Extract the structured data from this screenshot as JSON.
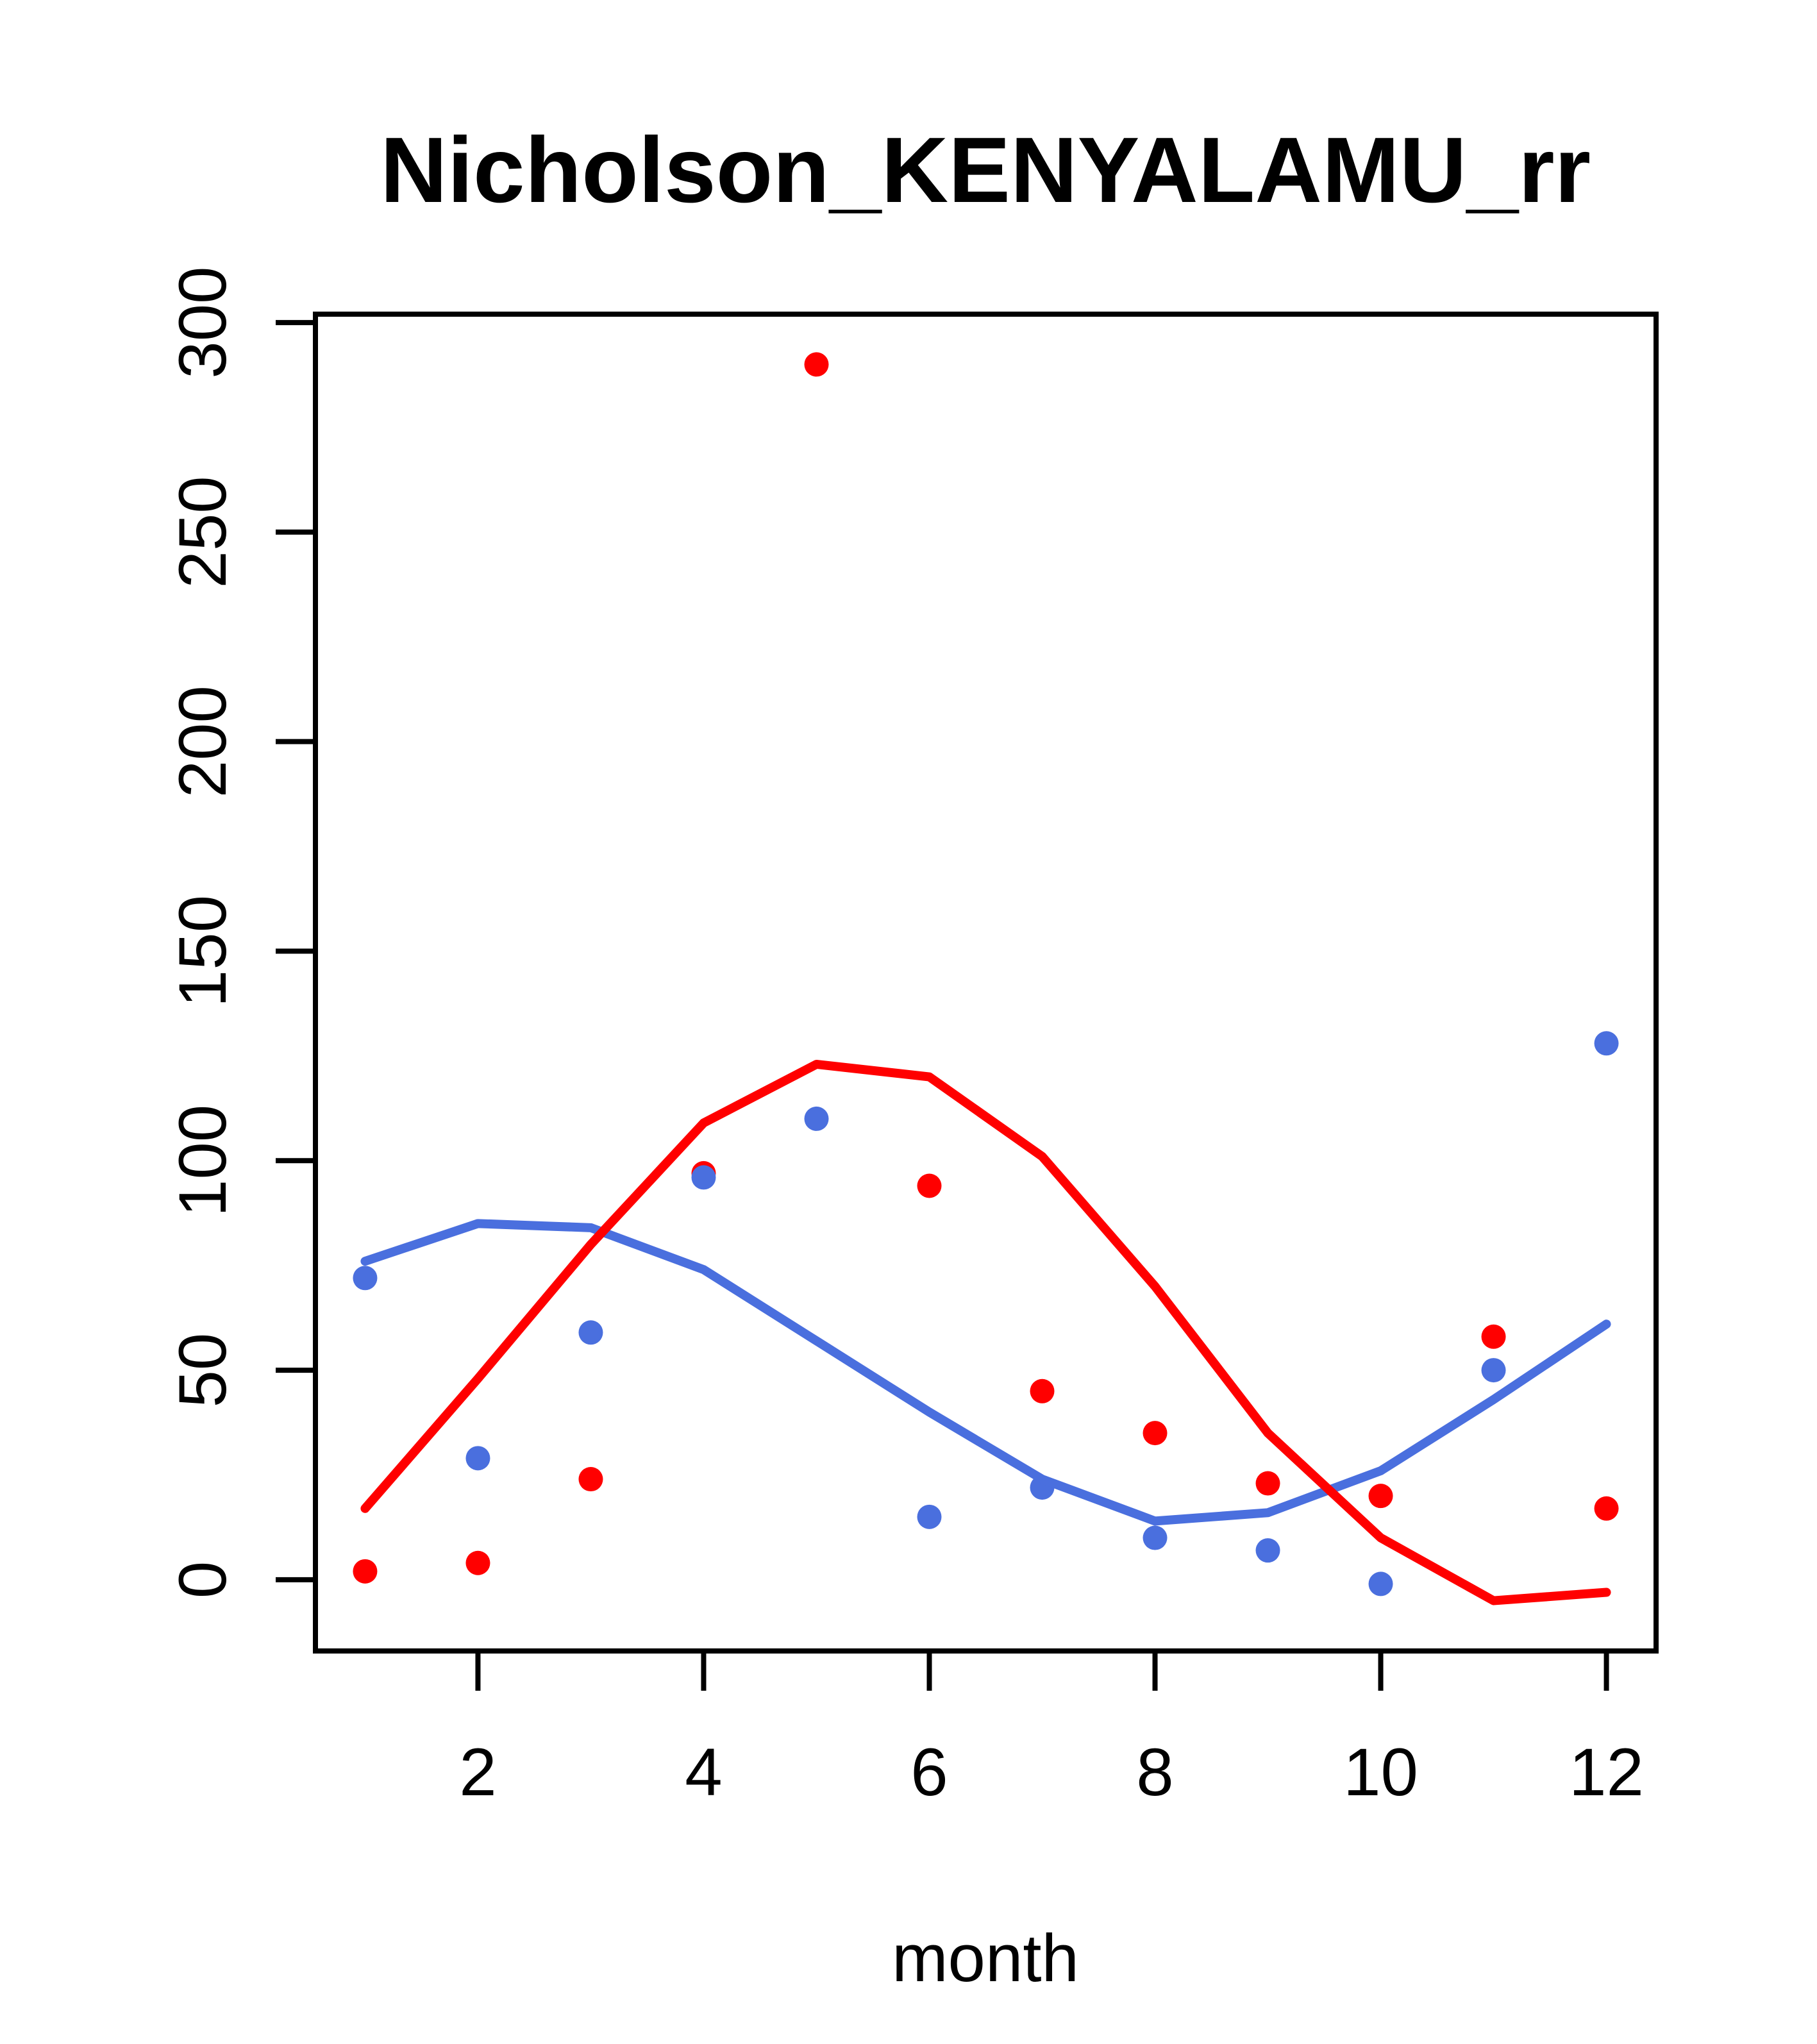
{
  "figure": {
    "background": "#ffffff",
    "frame_color": "#000000"
  },
  "chart_data": {
    "type": "scatter",
    "title": "Nicholson_KENYALAMU_rr",
    "xlabel": "month",
    "ylabel": "",
    "grid": false,
    "legend": null,
    "xlim": [
      0.56,
      12.44
    ],
    "ylim": [
      -17,
      302
    ],
    "x_ticks": [
      2,
      4,
      6,
      8,
      10,
      12
    ],
    "y_ticks": [
      0,
      50,
      100,
      150,
      200,
      250,
      300
    ],
    "x": [
      1,
      2,
      3,
      4,
      5,
      6,
      7,
      8,
      9,
      10,
      11,
      12
    ],
    "series": [
      {
        "name": "red-points",
        "kind": "scatter",
        "color": "#FF0000",
        "values": [
          2,
          4,
          24,
          97,
          290,
          94,
          45,
          35,
          23,
          20,
          58,
          17
        ]
      },
      {
        "name": "blue-points",
        "kind": "scatter",
        "color": "#4A6FDE",
        "values": [
          72,
          29,
          59,
          96,
          110,
          15,
          22,
          10,
          7,
          -1,
          50,
          128
        ]
      },
      {
        "name": "blue-smooth-line",
        "kind": "line",
        "color": "#4A6FDE",
        "values": [
          76,
          85,
          84,
          74,
          57,
          40,
          24,
          14,
          16,
          26,
          43,
          61
        ]
      },
      {
        "name": "red-smooth-line",
        "kind": "line",
        "color": "#FF0000",
        "values": [
          17,
          48,
          80,
          109,
          123,
          120,
          101,
          70,
          35,
          10,
          -5,
          -3
        ]
      }
    ]
  }
}
